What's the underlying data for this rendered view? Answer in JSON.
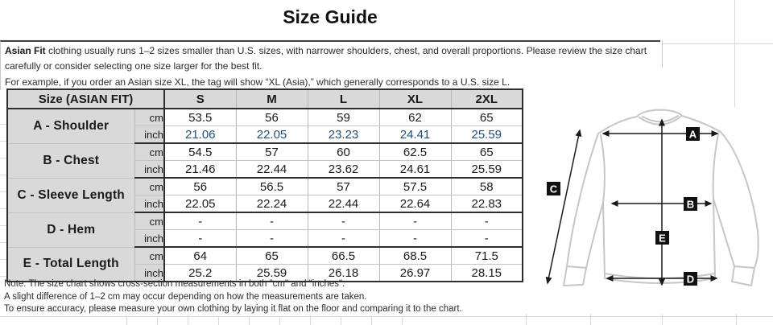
{
  "title": "Size Guide",
  "intro": {
    "lead": "Asian Fit",
    "line1_rest": " clothing usually runs 1–2 sizes smaller than U.S. sizes, with narrower shoulders, chest, and overall proportions. Please review the size chart carefully or consider selecting one size larger for the best fit.",
    "line2": "For example, if you order an Asian size XL, the tag will show “XL (Asia),” which generally corresponds to a U.S. size L."
  },
  "table": {
    "corner_label": "Size (ASIAN FIT)",
    "sizes": [
      "S",
      "M",
      "L",
      "XL",
      "2XL"
    ],
    "unit_cm": "cm",
    "unit_inch": "inch",
    "rows": [
      {
        "label": "A - Shoulder",
        "cm": [
          "53.5",
          "56",
          "59",
          "62",
          "65"
        ],
        "inch": [
          "21.06",
          "22.05",
          "23.23",
          "24.41",
          "25.59"
        ],
        "inch_blue": true
      },
      {
        "label": "B - Chest",
        "cm": [
          "54.5",
          "57",
          "60",
          "62.5",
          "65"
        ],
        "inch": [
          "21.46",
          "22.44",
          "23.62",
          "24.61",
          "25.59"
        ],
        "inch_blue": false
      },
      {
        "label": "C - Sleeve Length",
        "cm": [
          "56",
          "56.5",
          "57",
          "57.5",
          "58"
        ],
        "inch": [
          "22.05",
          "22.24",
          "22.44",
          "22.64",
          "22.83"
        ],
        "inch_blue": false
      },
      {
        "label": "D - Hem",
        "cm": [
          "-",
          "-",
          "-",
          "-",
          "-"
        ],
        "inch": [
          "-",
          "-",
          "-",
          "-",
          "-"
        ],
        "inch_blue": false
      },
      {
        "label": "E - Total Length",
        "cm": [
          "64",
          "65",
          "66.5",
          "68.5",
          "71.5"
        ],
        "inch": [
          "25.2",
          "25.59",
          "26.18",
          "26.97",
          "28.15"
        ],
        "inch_blue": false
      }
    ]
  },
  "footnotes": [
    "Note: The size chart shows cross-section measurements in both \"cm\" and \"inches\".",
    "A slight difference of 1–2 cm may occur depending on how the measurements are taken.",
    "To ensure accuracy, please measure your own clothing by laying it flat on the floor and comparing it to the chart."
  ],
  "diagram": {
    "labels": [
      "A",
      "B",
      "C",
      "D",
      "E"
    ]
  },
  "colors": {
    "inch_blue": "#1F4E79",
    "header_bg": "#D9D9D9",
    "border_dark": "#2E2E2E",
    "border_light": "#B7B7B7",
    "sweater_outline": "#C6C6C6",
    "arrow": "#1A1A1A"
  }
}
